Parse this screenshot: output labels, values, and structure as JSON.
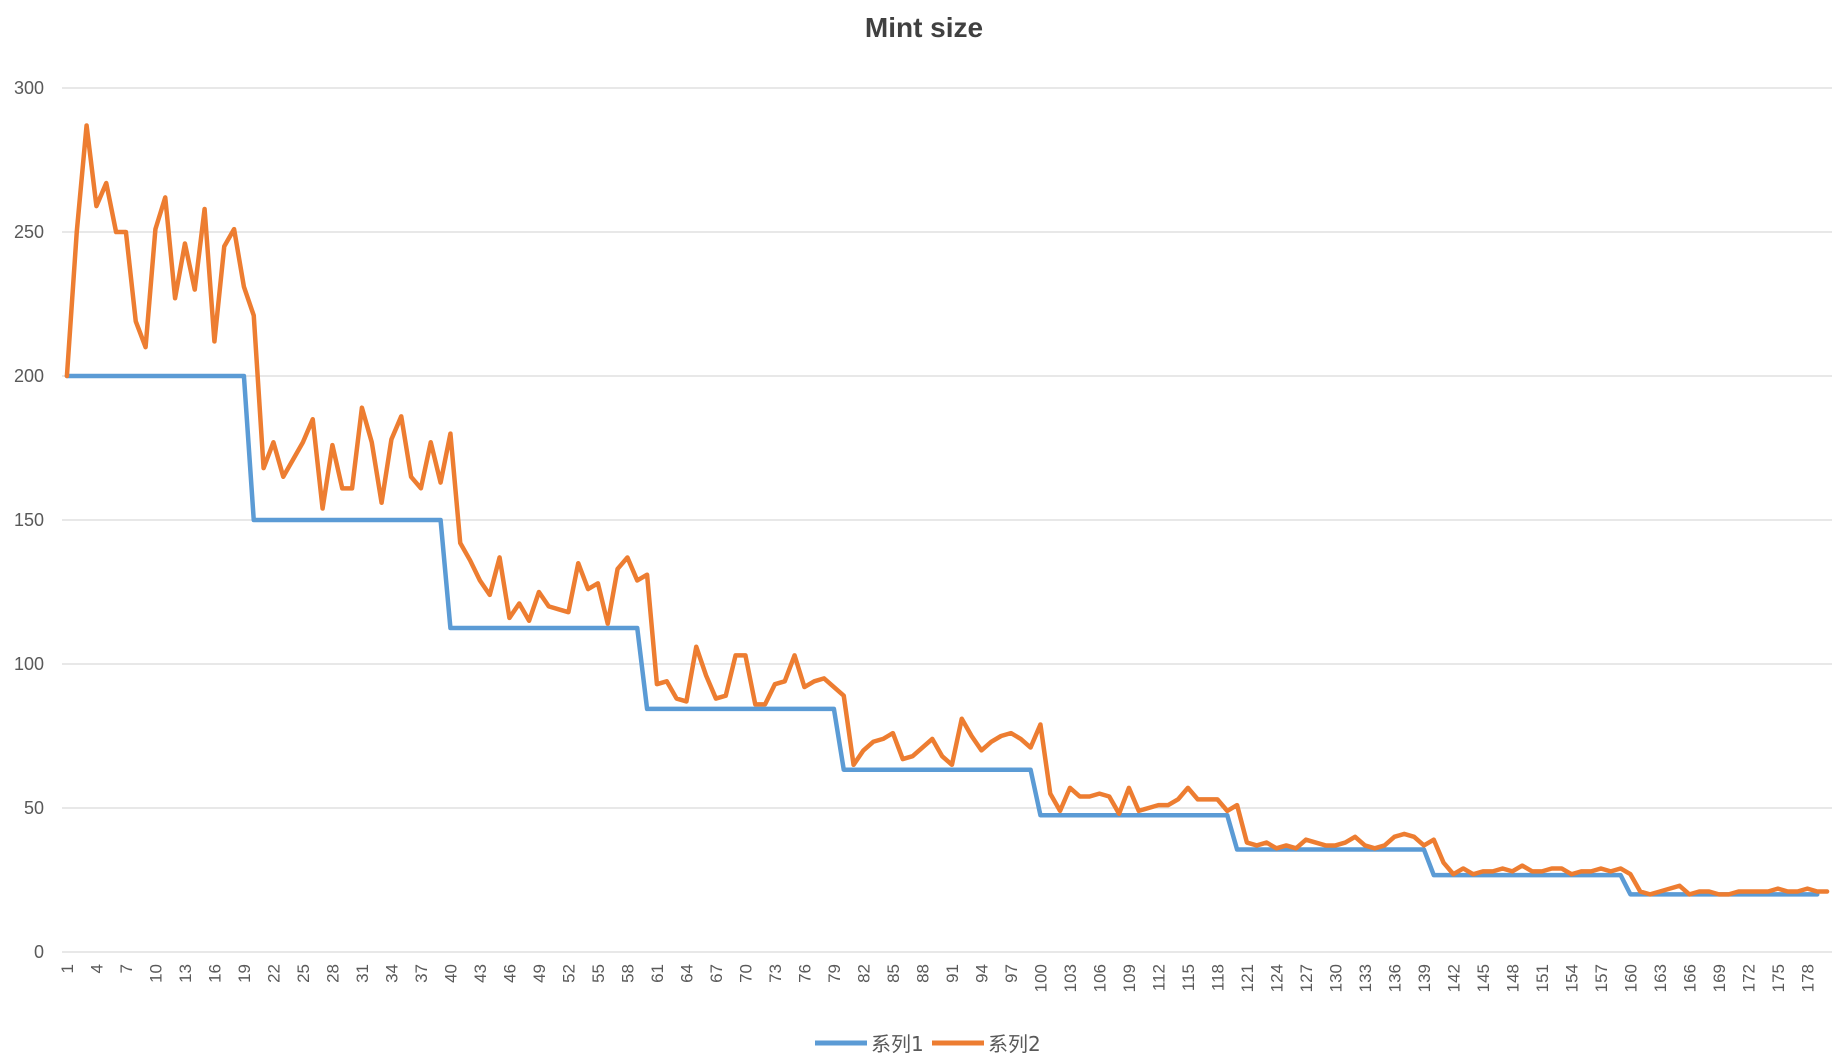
{
  "chart_data": {
    "type": "line",
    "title": "Mint size",
    "xlabel": "",
    "ylabel": "",
    "ylim": [
      0,
      300
    ],
    "yticks": [
      0,
      50,
      100,
      150,
      200,
      250,
      300
    ],
    "x_count": 180,
    "x_tick_labels": [
      "1",
      "4",
      "7",
      "10",
      "13",
      "16",
      "19",
      "22",
      "25",
      "28",
      "31",
      "34",
      "37",
      "40",
      "43",
      "46",
      "49",
      "52",
      "55",
      "58",
      "61",
      "64",
      "67",
      "70",
      "73",
      "76",
      "79",
      "82",
      "85",
      "88",
      "91",
      "94",
      "97",
      "100",
      "103",
      "106",
      "109",
      "112",
      "115",
      "118",
      "121",
      "124",
      "127",
      "130",
      "133",
      "136",
      "139",
      "142",
      "145",
      "148",
      "151",
      "154",
      "157",
      "160",
      "163",
      "166",
      "169",
      "172",
      "175",
      "178"
    ],
    "grid": "horizontal",
    "legend_position": "bottom",
    "colors": {
      "series1": "#5B9BD5",
      "series2": "#ED7D31",
      "grid": "#D9D9D9"
    },
    "series": [
      {
        "name": "系列1",
        "values": [
          200,
          200,
          200,
          200,
          200,
          200,
          200,
          200,
          200,
          200,
          200,
          200,
          200,
          200,
          200,
          200,
          200,
          200,
          200,
          150,
          150,
          150,
          150,
          150,
          150,
          150,
          150,
          150,
          150,
          150,
          150,
          150,
          150,
          150,
          150,
          150,
          150,
          150,
          150,
          112.5,
          112.5,
          112.5,
          112.5,
          112.5,
          112.5,
          112.5,
          112.5,
          112.5,
          112.5,
          112.5,
          112.5,
          112.5,
          112.5,
          112.5,
          112.5,
          112.5,
          112.5,
          112.5,
          112.5,
          84.4,
          84.4,
          84.4,
          84.4,
          84.4,
          84.4,
          84.4,
          84.4,
          84.4,
          84.4,
          84.4,
          84.4,
          84.4,
          84.4,
          84.4,
          84.4,
          84.4,
          84.4,
          84.4,
          84.4,
          63.3,
          63.3,
          63.3,
          63.3,
          63.3,
          63.3,
          63.3,
          63.3,
          63.3,
          63.3,
          63.3,
          63.3,
          63.3,
          63.3,
          63.3,
          63.3,
          63.3,
          63.3,
          63.3,
          63.3,
          47.5,
          47.5,
          47.5,
          47.5,
          47.5,
          47.5,
          47.5,
          47.5,
          47.5,
          47.5,
          47.5,
          47.5,
          47.5,
          47.5,
          47.5,
          47.5,
          47.5,
          47.5,
          47.5,
          47.5,
          35.6,
          35.6,
          35.6,
          35.6,
          35.6,
          35.6,
          35.6,
          35.6,
          35.6,
          35.6,
          35.6,
          35.6,
          35.6,
          35.6,
          35.6,
          35.6,
          35.6,
          35.6,
          35.6,
          35.6,
          26.7,
          26.7,
          26.7,
          26.7,
          26.7,
          26.7,
          26.7,
          26.7,
          26.7,
          26.7,
          26.7,
          26.7,
          26.7,
          26.7,
          26.7,
          26.7,
          26.7,
          26.7,
          26.7,
          26.7,
          20,
          20,
          20,
          20,
          20,
          20,
          20,
          20,
          20,
          20,
          20,
          20,
          20,
          20,
          20,
          20,
          20,
          20,
          20,
          20
        ]
      },
      {
        "name": "系列2",
        "values": [
          200,
          250,
          287,
          259,
          267,
          250,
          250,
          219,
          210,
          251,
          262,
          227,
          246,
          230,
          258,
          212,
          245,
          251,
          231,
          221,
          168,
          177,
          165,
          171,
          177,
          185,
          154,
          176,
          161,
          161,
          189,
          177,
          156,
          178,
          186,
          165,
          161,
          177,
          163,
          180,
          142,
          136,
          129,
          124,
          137,
          116,
          121,
          115,
          125,
          120,
          119,
          118,
          135,
          126,
          128,
          114,
          133,
          137,
          129,
          131,
          93,
          94,
          88,
          87,
          106,
          96,
          88,
          89,
          103,
          103,
          86,
          86,
          93,
          94,
          103,
          92,
          94,
          95,
          92,
          89,
          65,
          70,
          73,
          74,
          76,
          67,
          68,
          71,
          74,
          68,
          65,
          81,
          75,
          70,
          73,
          75,
          76,
          74,
          71,
          79,
          55,
          49,
          57,
          54,
          54,
          55,
          54,
          48,
          57,
          49,
          50,
          51,
          51,
          53,
          57,
          53,
          53,
          53,
          49,
          51,
          38,
          37,
          38,
          36,
          37,
          36,
          39,
          38,
          37,
          37,
          38,
          40,
          37,
          36,
          37,
          40,
          41,
          40,
          37,
          39,
          31,
          27,
          29,
          27,
          28,
          28,
          29,
          28,
          30,
          28,
          28,
          29,
          29,
          27,
          28,
          28,
          29,
          28,
          29,
          27,
          21,
          20,
          21,
          22,
          23,
          20,
          21,
          21,
          20,
          20,
          21,
          21,
          21,
          21,
          22,
          21,
          21,
          22,
          21,
          21
        ]
      }
    ]
  }
}
